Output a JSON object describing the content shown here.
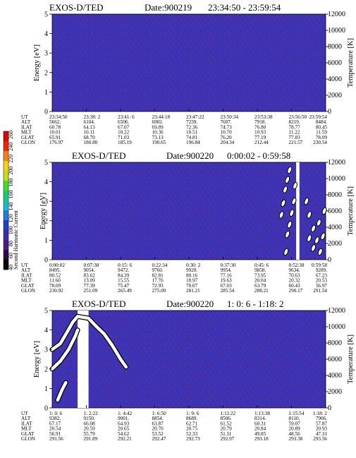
{
  "colorbar": {
    "label": "Second Harmonic Current",
    "ticks": [
      "40",
      "60",
      "80",
      "100",
      "120",
      "140",
      "160",
      "180",
      "200",
      "220",
      "240",
      "260"
    ],
    "colors": [
      "#000000",
      "#2a0a4a",
      "#4a1a8c",
      "#3d2aa8",
      "#2040d0",
      "#1a7fe0",
      "#10c0d0",
      "#10d070",
      "#40e020",
      "#c0e010",
      "#ffd000",
      "#ff8000",
      "#ff2000",
      "#e00000"
    ]
  },
  "chart_data": [
    {
      "type": "heatmap",
      "title": "EXOS-D/TED",
      "date": "Date:900219",
      "time_range": "23:34:50 - 23:59:54",
      "ylabel": "Energy [eV]",
      "ylabel_right": "Temperature [K]",
      "yticks": [
        "0",
        "1",
        "2",
        "3",
        "4",
        "5"
      ],
      "yticks_right": [
        "0",
        "2000",
        "4000",
        "6000",
        "8000",
        "10000",
        "12000"
      ],
      "ylim": [
        0,
        5
      ],
      "ylim_right": [
        0,
        12000
      ],
      "row_labels": [
        "UT",
        "ALT",
        "ILAT",
        "MLT",
        "GLAT",
        "GLON"
      ],
      "columns": [
        [
          "23:34:50",
          "5662.",
          "60.78",
          "10.01",
          "65.91",
          "176.97"
        ],
        [
          "23:38: 2",
          "6104.",
          "64.13",
          "10.11",
          "68.70",
          "180.80"
        ],
        [
          "23:41: 6",
          "6506.",
          "67.07",
          "10.22",
          "71.03",
          "185.19"
        ],
        [
          "23:44:18",
          "6902.",
          "69.89",
          "10.36",
          "73.13",
          "190.65"
        ],
        [
          "23:47:22",
          "7239.",
          "72.36",
          "10.51",
          "74.81",
          "196.84"
        ],
        [
          "23:50:34",
          "7607.",
          "74.73",
          "10.70",
          "76.20",
          "204.34"
        ],
        [
          "23:53:38",
          "7918.",
          "76.80",
          "10.93",
          "77.19",
          "212.44"
        ],
        [
          "23:56:50",
          "8219.",
          "78.77",
          "11.22",
          "77.83",
          "221.57"
        ],
        [
          "23:59:54",
          "8484.",
          "80.45",
          "11.59",
          "78.09",
          "230.54"
        ]
      ],
      "white_bars": [],
      "blobs": [],
      "temperature_trace": []
    },
    {
      "type": "heatmap",
      "title": "EXOS-D/TED",
      "date": "Date:900220",
      "time_range": "0:00:02 - 0:59:58",
      "ylabel": "Energy [eV]",
      "ylabel_right": "Temperature [K]",
      "yticks": [
        "0",
        "1",
        "2",
        "3",
        "4",
        "5"
      ],
      "yticks_right": [
        "0",
        "2000",
        "4000",
        "6000",
        "8000",
        "10000",
        "12000"
      ],
      "ylim": [
        0,
        5
      ],
      "ylim_right": [
        0,
        12000
      ],
      "row_labels": [
        "UT",
        "ALT",
        "ILAT",
        "MLT",
        "GLAT",
        "GLON"
      ],
      "columns": [
        [
          "0:00:02",
          "8495.",
          "80.52",
          "11.60",
          "78.09",
          "230.92"
        ],
        [
          "0:07:38",
          "9054.",
          "83.62",
          "13.09",
          "77.39",
          "251.09"
        ],
        [
          "0:15: 6",
          "9472.",
          "84.39",
          "15.55",
          "75.47",
          "265.49"
        ],
        [
          "0:22:34",
          "9760.",
          "82.81",
          "17.76",
          "72.93",
          "275.00"
        ],
        [
          "0:30: 2",
          "9920.",
          "80.16",
          "18.97",
          "70.07",
          "281.21"
        ],
        [
          "0:37:30",
          "9954.",
          "77.16",
          "19.63",
          "67.03",
          "285.54"
        ],
        [
          "0:45: 6",
          "9858.",
          "73.95",
          "20.04",
          "63.79",
          "288.21"
        ],
        [
          "0:52:38",
          "9634.",
          "70.63",
          "20.32",
          "60.43",
          "290.17"
        ],
        [
          "0:59:58",
          "9289.",
          "67.23",
          "20.53",
          "56.97",
          "291.54"
        ]
      ],
      "white_bars": [
        {
          "t_start": 0.892,
          "t_end": 0.904
        }
      ],
      "blobs": [
        {
          "t": 0.838,
          "e": 2.3
        },
        {
          "t": 0.845,
          "e": 2.9
        },
        {
          "t": 0.852,
          "e": 3.6
        },
        {
          "t": 0.86,
          "e": 4.1
        },
        {
          "t": 0.868,
          "e": 4.6
        },
        {
          "t": 0.855,
          "e": 0.4
        },
        {
          "t": 0.86,
          "e": 1.3
        },
        {
          "t": 0.868,
          "e": 1.8
        },
        {
          "t": 0.876,
          "e": 2.4
        },
        {
          "t": 0.884,
          "e": 3.0
        },
        {
          "t": 0.888,
          "e": 3.8
        },
        {
          "t": 0.93,
          "e": 3.0
        },
        {
          "t": 0.94,
          "e": 2.3
        },
        {
          "t": 0.955,
          "e": 1.6
        },
        {
          "t": 0.968,
          "e": 1.0
        },
        {
          "t": 0.98,
          "e": 0.4
        },
        {
          "t": 0.94,
          "e": 1.1
        },
        {
          "t": 0.955,
          "e": 0.6
        },
        {
          "t": 0.975,
          "e": 1.9
        },
        {
          "t": 0.99,
          "e": 1.2
        },
        {
          "t": 0.995,
          "e": 2.5
        }
      ],
      "temperature_trace": []
    },
    {
      "type": "heatmap",
      "title": "EXOS-D/TED",
      "date": "Date:900220",
      "time_range": "1: 0: 6 - 1:18: 2",
      "ylabel": "Energy [eV]",
      "ylabel_right": "Temperature [K]",
      "yticks": [
        "0",
        "1",
        "2",
        "3",
        "4",
        "5"
      ],
      "yticks_right": [
        "0",
        "2000",
        "4000",
        "6000",
        "8000",
        "10000",
        "12000"
      ],
      "ylim": [
        0,
        5
      ],
      "ylim_right": [
        0,
        12000
      ],
      "row_labels": [
        "UT",
        "ALT",
        "ILAT",
        "MLT",
        "GLAT",
        "GLON"
      ],
      "columns": [
        [
          "1: 0: 6",
          "9382.",
          "67.17",
          "20.54",
          "56.91",
          "291.56"
        ],
        [
          "1: 2:22",
          "9150.",
          "66.08",
          "20.59",
          "55.79",
          "291.89"
        ],
        [
          "1: 4:42",
          "9001.",
          "64.93",
          "20.65",
          "54.62",
          "292.21"
        ],
        [
          "1: 6:50",
          "8854.",
          "63.87",
          "20.70",
          "53.52",
          "292.47"
        ],
        [
          "1: 9: 6",
          "8689.",
          "62.71",
          "20.75",
          "52.33",
          "292.73"
        ],
        [
          "1:11:22",
          "8506.",
          "61.52",
          "20.79",
          "51.11",
          "292.97"
        ],
        [
          "1:13:38",
          "8314.",
          "60.31",
          "20.84",
          "49.85",
          "293.18"
        ],
        [
          "1:15:54",
          "8110.",
          "59.07",
          "20.89",
          "48.56",
          "293.38"
        ],
        [
          "1:18: 2",
          "7906.",
          "57.87",
          "20.93",
          "47.31",
          "293.56"
        ]
      ],
      "white_bars": [
        {
          "t_start": 0.093,
          "t_end": 0.133
        }
      ],
      "blobs": [],
      "temperature_trace": [
        {
          "t": 0.0,
          "e": 3.0
        },
        {
          "t": 0.03,
          "e": 3.3
        },
        {
          "t": 0.055,
          "e": 3.9
        },
        {
          "t": 0.075,
          "e": 4.4
        },
        {
          "t": 0.093,
          "e": 4.7
        },
        {
          "t": 0.133,
          "e": 4.6
        },
        {
          "t": 0.16,
          "e": 4.2
        },
        {
          "t": 0.19,
          "e": 3.8
        },
        {
          "t": 0.22,
          "e": 3.2
        },
        {
          "t": 0.25,
          "e": 2.5
        },
        {
          "t": 0.27,
          "e": 2.1
        },
        {
          "t": 0.0,
          "e": 2.0
        },
        {
          "t": 0.03,
          "e": 2.4
        },
        {
          "t": 0.06,
          "e": 3.0
        },
        {
          "t": 0.085,
          "e": 3.7
        },
        {
          "t": 0.093,
          "e": 4.0
        },
        {
          "t": 0.02,
          "e": 0.4
        },
        {
          "t": 0.035,
          "e": 0.9
        },
        {
          "t": 0.05,
          "e": 1.3
        }
      ]
    }
  ]
}
